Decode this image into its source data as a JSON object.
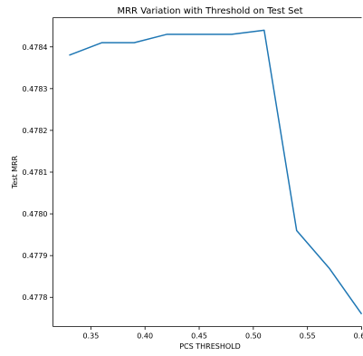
{
  "chart_data": {
    "type": "line",
    "title": "MRR Variation with Threshold on Test Set",
    "xlabel": "PCS THRESHOLD",
    "ylabel": "Test MRR",
    "x_ticks": [
      "0.35",
      "0.40",
      "0.45",
      "0.50",
      "0.55",
      "0.60"
    ],
    "y_ticks": [
      "0.4778",
      "0.4779",
      "0.4780",
      "0.4781",
      "0.4782",
      "0.4783",
      "0.4784"
    ],
    "xlim": [
      0.315,
      0.6
    ],
    "ylim": [
      0.47773,
      0.47847
    ],
    "grid": false,
    "series": [
      {
        "color": "#1f77b4",
        "x": [
          0.33,
          0.36,
          0.39,
          0.42,
          0.45,
          0.48,
          0.51,
          0.54,
          0.57,
          0.6
        ],
        "y": [
          0.47838,
          0.47841,
          0.47841,
          0.47843,
          0.47843,
          0.47843,
          0.47844,
          0.47796,
          0.47787,
          0.47776
        ]
      }
    ]
  }
}
